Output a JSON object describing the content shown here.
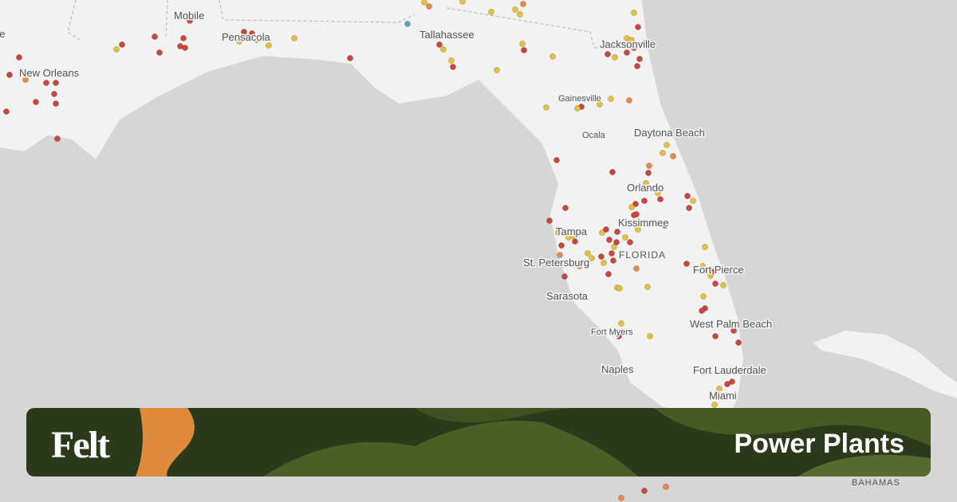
{
  "map": {
    "labels": [
      "ge",
      "Mobile",
      "Pensacola",
      "Tallahassee",
      "Jacksonville",
      "New Orleans",
      "Gainesville",
      "Ocala",
      "Daytona Beach",
      "Orlando",
      "Kissimmee",
      "Tampa",
      "St. Petersburg",
      "FLORIDA",
      "Fort Pierce",
      "Sarasota",
      "West Palm Beach",
      "Fort Myers",
      "Naples",
      "Fort Lauderdale",
      "Miami",
      "BAHAMAS"
    ]
  },
  "banner": {
    "brand": "Felt",
    "title": "Power Plants"
  }
}
